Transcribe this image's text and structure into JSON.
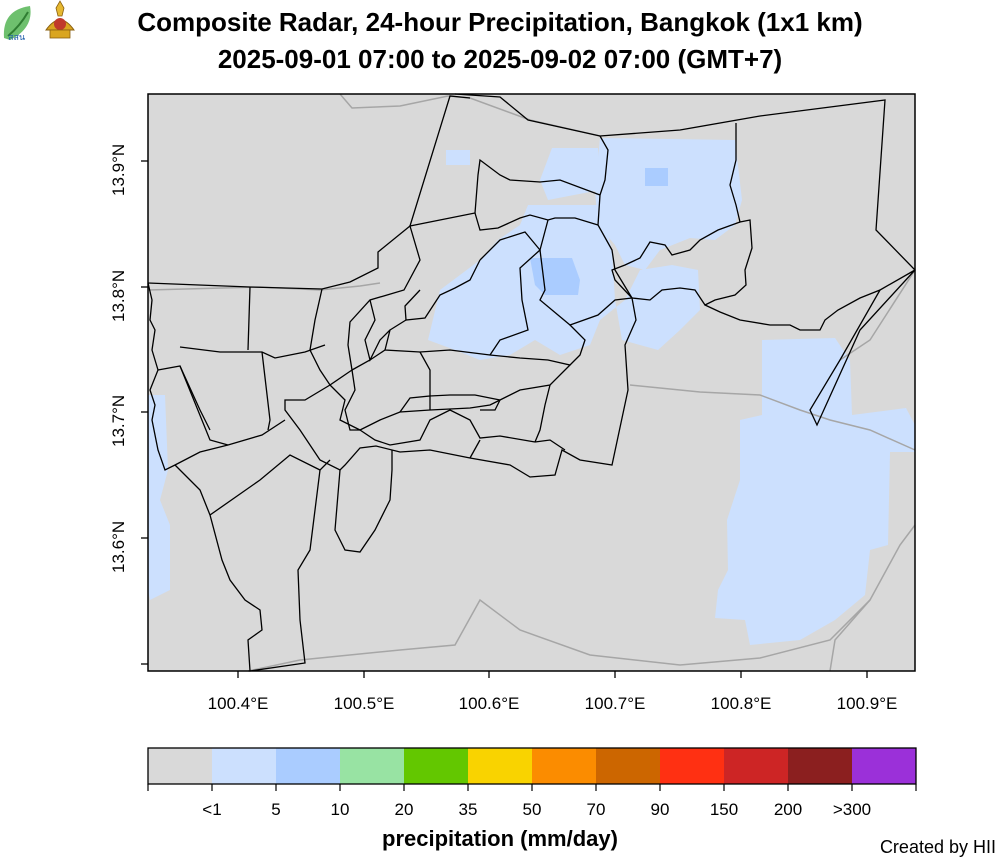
{
  "title": "Composite Radar, 24-hour Precipitation, Bangkok (1x1 km)",
  "subtitle": "2025-09-01 07:00 to 2025-09-02 07:00 (GMT+7)",
  "logos": [
    {
      "name": "ssn-logo",
      "text": "สสน"
    },
    {
      "name": "royal-emblem"
    }
  ],
  "y_axis_labels": [
    "13.9°N",
    "13.8°N",
    "13.7°N",
    "13.6°N"
  ],
  "x_axis_labels": [
    "100.4°E",
    "100.5°E",
    "100.6°E",
    "100.7°E",
    "100.8°E",
    "100.9°E"
  ],
  "legend": {
    "title": "precipitation (mm/day)",
    "ticks": [
      "<1",
      "5",
      "10",
      "20",
      "35",
      "50",
      "70",
      "90",
      "150",
      "200",
      ">300"
    ],
    "colors": [
      "#d9d9d9",
      "#cce0fe",
      "#aaccff",
      "#98e3a3",
      "#63c700",
      "#f9d300",
      "#fb8c00",
      "#cc6600",
      "#ff3012",
      "#cd2525",
      "#8b1f1f",
      "#9b30d9"
    ]
  },
  "credit": "Created by HII",
  "colors": {
    "background": "#d9d9d9",
    "light_rain": "#cce0fe",
    "moderate_rain": "#aaccff",
    "district_border": "#000000",
    "province_border": "#a6a6a6"
  }
}
